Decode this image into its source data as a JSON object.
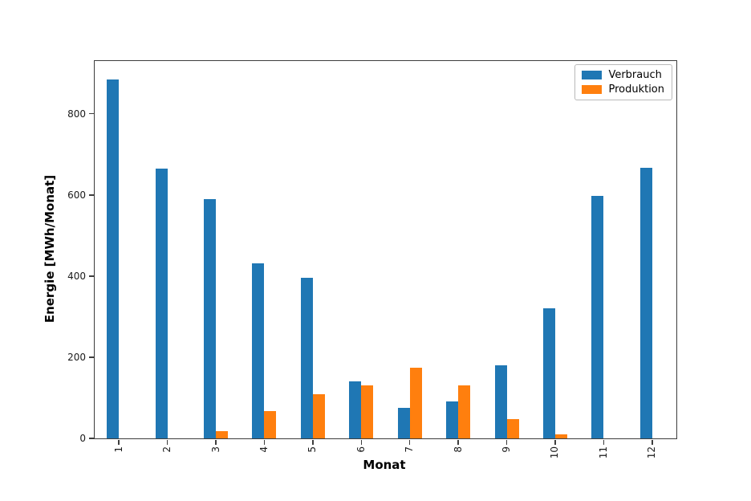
{
  "chart_data": {
    "type": "bar",
    "title": "",
    "xlabel": "Monat",
    "ylabel": "Energie [MWh/Monat]",
    "categories": [
      "1",
      "2",
      "3",
      "4",
      "5",
      "6",
      "7",
      "8",
      "9",
      "10",
      "11",
      "12"
    ],
    "series": [
      {
        "name": "Verbrauch",
        "color": "#1f77b4",
        "values": [
          885,
          665,
          590,
          432,
          395,
          140,
          76,
          92,
          180,
          320,
          598,
          667
        ]
      },
      {
        "name": "Produktion",
        "color": "#ff7f0e",
        "values": [
          0,
          0,
          18,
          68,
          108,
          130,
          175,
          130,
          47,
          10,
          0,
          0
        ]
      }
    ],
    "ylim": [
      0,
      930
    ],
    "yticks": [
      0,
      200,
      400,
      600,
      800
    ],
    "legend_position": "upper right",
    "grid": false,
    "x_tick_rotation": 90,
    "bar_group_width_fraction": 0.5
  }
}
